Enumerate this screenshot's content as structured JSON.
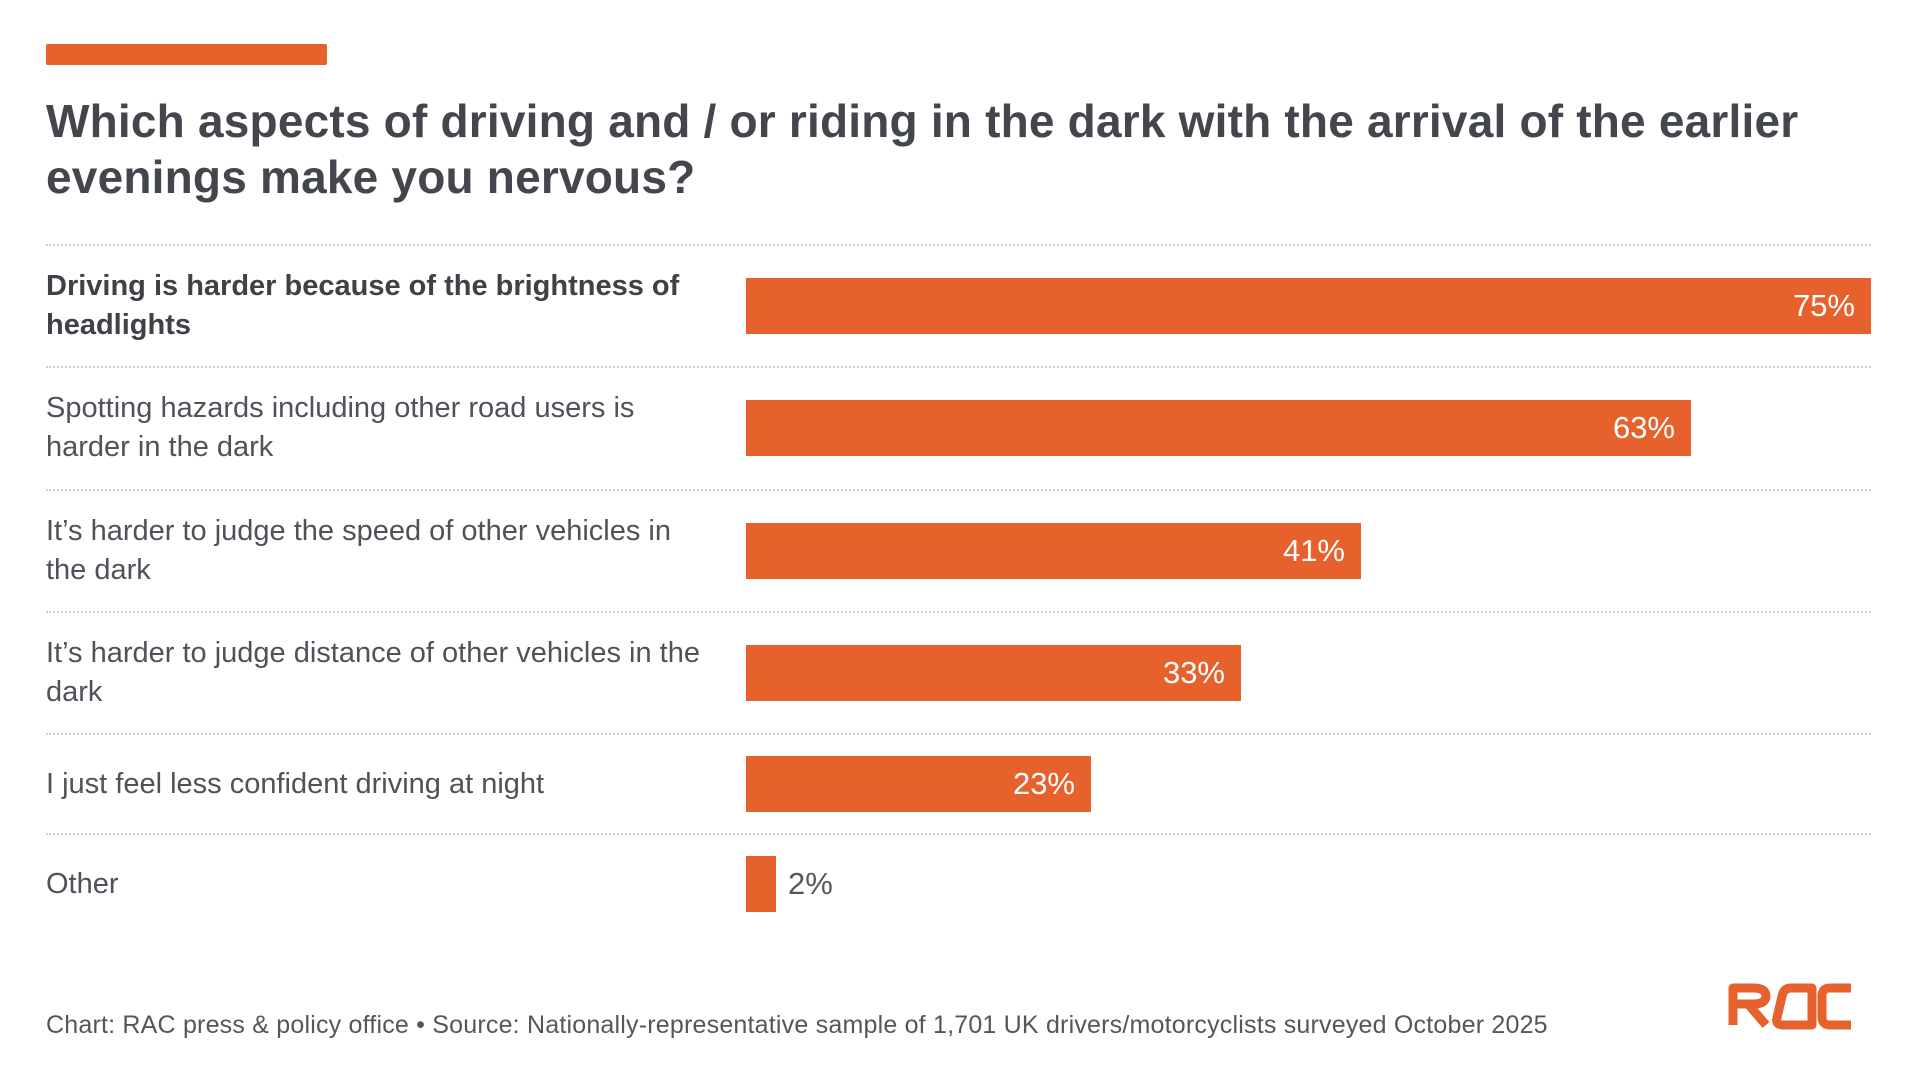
{
  "page": {
    "background": "#FFFFFF",
    "accent_color": "#E7612C"
  },
  "header": {
    "title": "Which aspects of driving and / or riding in the dark with the arrival of the earlier evenings make you nervous?"
  },
  "chart_data": {
    "type": "bar",
    "orientation": "horizontal",
    "title": "Which aspects of driving and / or riding in the dark with the arrival of the earlier evenings make you nervous?",
    "categories": [
      "Driving is harder because of the brightness of headlights",
      "Spotting hazards including other road users is harder in the dark",
      "It’s harder to judge the speed of other vehicles in the dark",
      "It’s harder to judge distance of other vehicles in the dark",
      "I just feel less confident driving at night",
      "Other"
    ],
    "values": [
      75,
      63,
      41,
      33,
      23,
      2
    ],
    "unit": "%",
    "scale_max": 75,
    "bar_color": "#E7612C",
    "value_label_color_inside": "#FFFFFF",
    "value_label_color_outside": "#55575C",
    "grid": "dotted horizontal separators between rows",
    "legend": "none",
    "xlabel": "",
    "ylabel": ""
  },
  "rows": [
    {
      "label": "Driving is harder because of the brightness of headlights",
      "value": 75,
      "value_label": "75%",
      "bold": true,
      "label_outside": false
    },
    {
      "label": "Spotting hazards including other road users is harder in the dark",
      "value": 63,
      "value_label": "63%",
      "bold": false,
      "label_outside": false
    },
    {
      "label": "It’s harder to judge the speed of other vehicles in the dark",
      "value": 41,
      "value_label": "41%",
      "bold": false,
      "label_outside": false
    },
    {
      "label": "It’s harder to judge distance of other vehicles in the dark",
      "value": 33,
      "value_label": "33%",
      "bold": false,
      "label_outside": false
    },
    {
      "label": "I just feel less confident driving at night",
      "value": 23,
      "value_label": "23%",
      "bold": false,
      "label_outside": false
    },
    {
      "label": "Other",
      "value": 2,
      "value_label": "2%",
      "bold": false,
      "label_outside": true
    }
  ],
  "footer": {
    "credit": "Chart: RAC press & policy office • Source: Nationally-representative sample of 1,701 UK drivers/motorcyclists surveyed October 2025",
    "logo_text": "RAC",
    "logo_color": "#E7612C"
  }
}
